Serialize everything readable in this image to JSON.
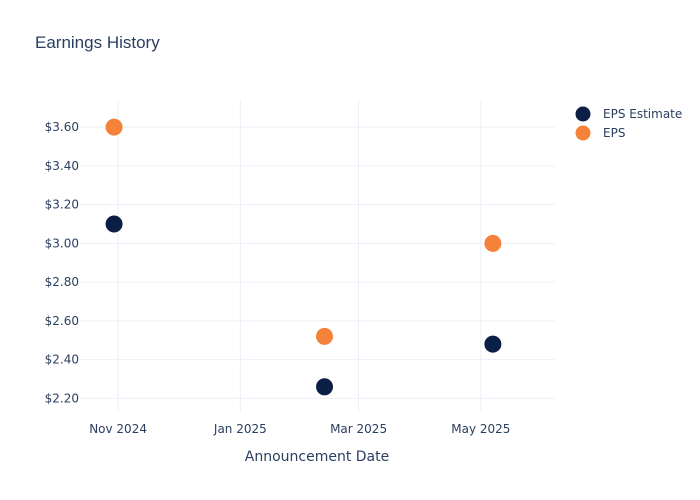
{
  "chart_data": {
    "type": "scatter",
    "title": "Earnings History",
    "xlabel": "Announcement Date",
    "ylabel": "",
    "ylim": [
      2.13,
      3.74
    ],
    "xlim": [
      "2024-10-13",
      "2025-06-07"
    ],
    "grid": true,
    "legend_position": "top-right",
    "y_ticks": [
      2.2,
      2.4,
      2.6,
      2.8,
      3.0,
      3.2,
      3.4,
      3.6
    ],
    "y_tick_labels": [
      "$2.20",
      "$2.40",
      "$2.60",
      "$2.80",
      "$3.00",
      "$3.20",
      "$3.40",
      "$3.60"
    ],
    "x_ticks": [
      "2024-11-01",
      "2025-01-01",
      "2025-03-01",
      "2025-05-01"
    ],
    "x_tick_labels": [
      "Nov 2024",
      "Jan 2025",
      "Mar 2025",
      "May 2025"
    ],
    "x": [
      "2024-10-30",
      "2025-02-12",
      "2025-05-07"
    ],
    "series": [
      {
        "name": "EPS Estimate",
        "color": "#0b1f45",
        "values": [
          3.1,
          2.26,
          2.48
        ]
      },
      {
        "name": "EPS",
        "color": "#f5823a",
        "values": [
          3.6,
          2.52,
          3.0
        ]
      }
    ]
  }
}
